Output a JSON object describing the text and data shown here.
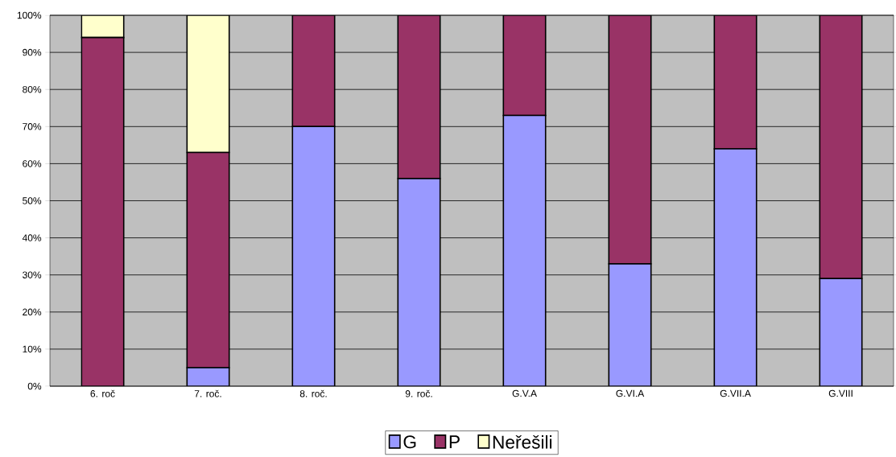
{
  "chart_data": {
    "type": "bar",
    "stacked": true,
    "categories": [
      "6. roč",
      "7. roč.",
      "8. roč.",
      "9. roč.",
      "G.V.A",
      "G.VI.A",
      "G.VII.A",
      "G.VIII"
    ],
    "series": [
      {
        "name": "G",
        "color": "#9999ff",
        "values": [
          0,
          5,
          70,
          56,
          73,
          33,
          64,
          29
        ]
      },
      {
        "name": "P",
        "color": "#993366",
        "values": [
          94,
          58,
          30,
          44,
          27,
          67,
          36,
          71
        ]
      },
      {
        "name": "Neřešili",
        "color": "#ffffcc",
        "values": [
          6,
          37,
          0,
          0,
          0,
          0,
          0,
          0
        ]
      }
    ],
    "ylim": [
      0,
      100
    ],
    "yticks": [
      {
        "value": 0,
        "label": "0%"
      },
      {
        "value": 10,
        "label": "10%"
      },
      {
        "value": 20,
        "label": "20%"
      },
      {
        "value": 30,
        "label": "30%"
      },
      {
        "value": 40,
        "label": "40%"
      },
      {
        "value": 50,
        "label": "50%"
      },
      {
        "value": 60,
        "label": "60%"
      },
      {
        "value": 70,
        "label": "70%"
      },
      {
        "value": 80,
        "label": "80%"
      },
      {
        "value": 90,
        "label": "90%"
      },
      {
        "value": 100,
        "label": "100%"
      }
    ],
    "grid": "y",
    "legend": "bottom"
  }
}
